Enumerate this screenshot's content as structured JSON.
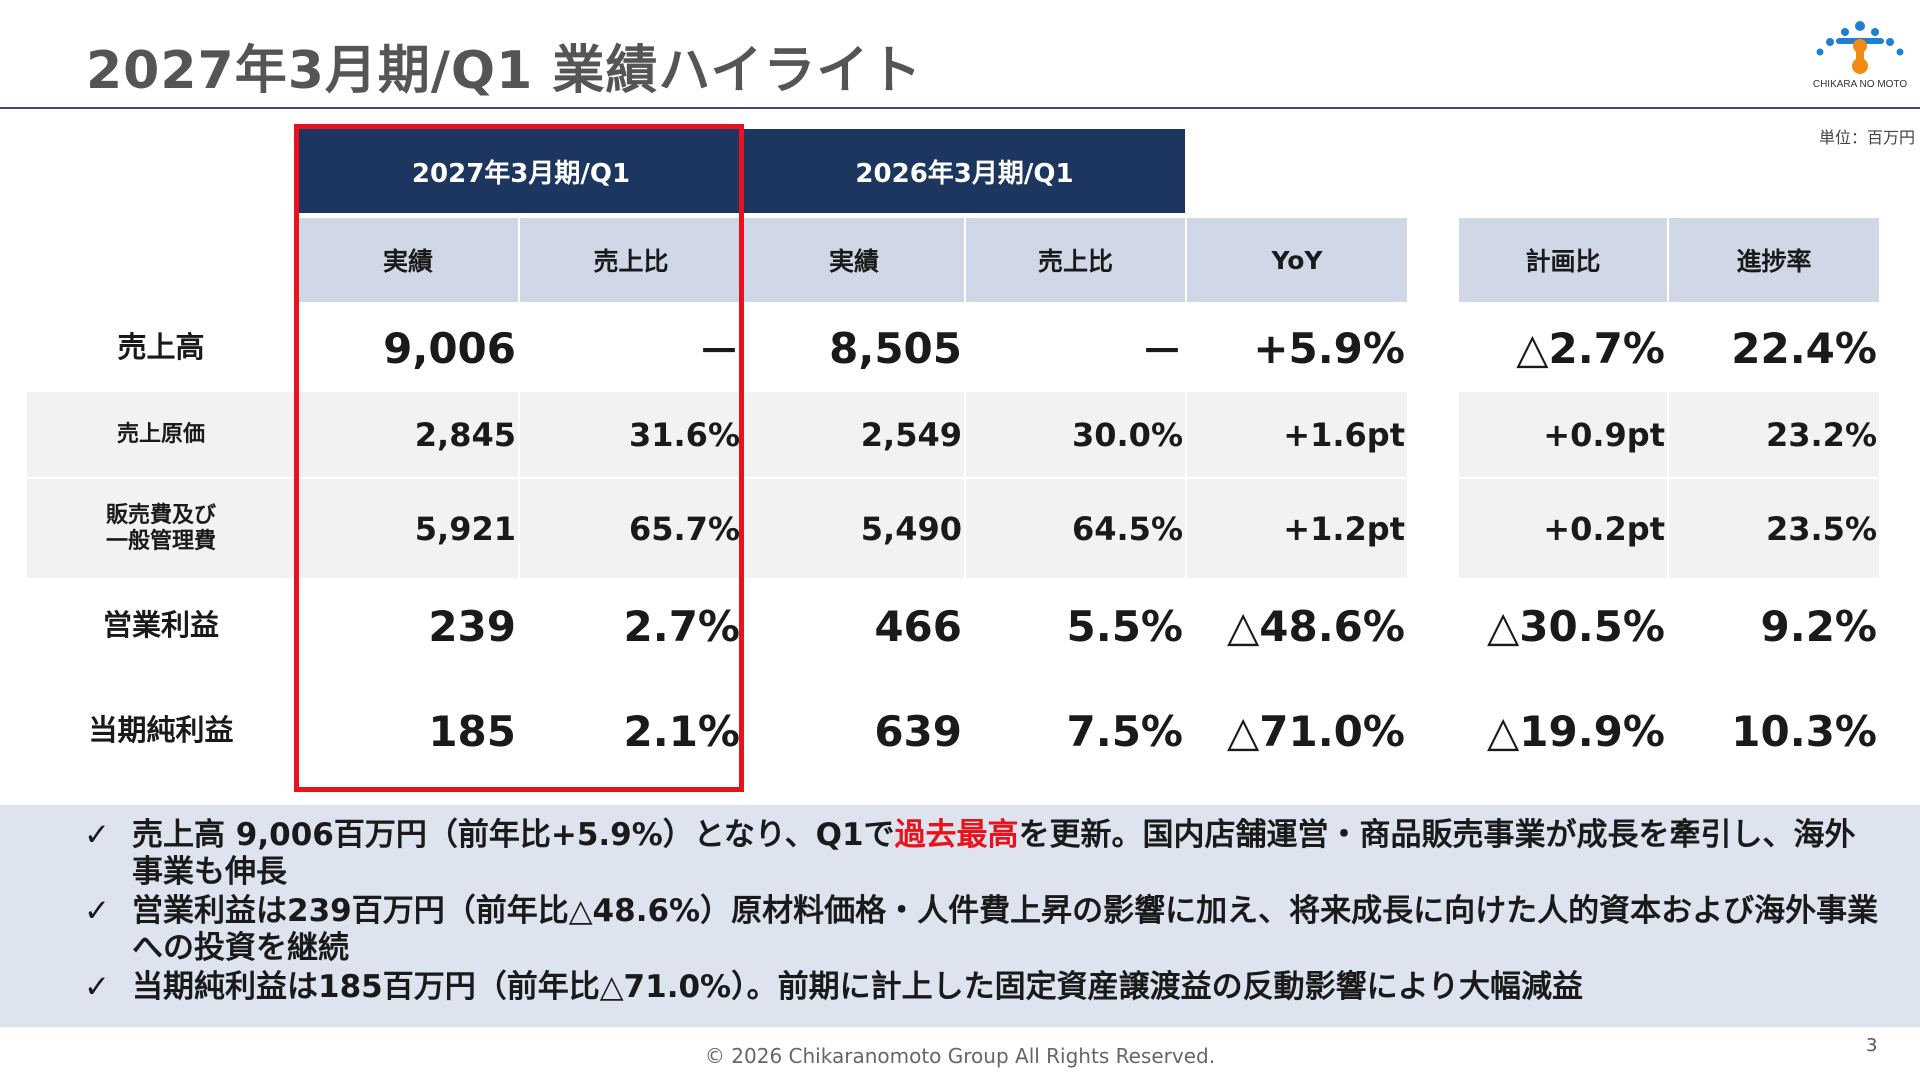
{
  "title": "2027年3月期/Q1 業績ハイライト",
  "logo_text": "CHIKARA NO MOTO",
  "unit": "単位：百万円",
  "periods": {
    "current": "2027年3月期/Q1",
    "prior": "2026年3月期/Q1"
  },
  "columns": {
    "cur_actual": "実績",
    "cur_ratio": "売上比",
    "pri_actual": "実績",
    "pri_ratio": "売上比",
    "yoy": "YoY",
    "plan": "計画比",
    "progress": "進捗率"
  },
  "rows": [
    {
      "label": "売上高",
      "cur_actual": "9,006",
      "cur_ratio": "－",
      "pri_actual": "8,505",
      "pri_ratio": "－",
      "yoy": "+5.9%",
      "plan": "△2.7%",
      "progress": "22.4%"
    },
    {
      "label": "売上原価",
      "cur_actual": "2,845",
      "cur_ratio": "31.6%",
      "pri_actual": "2,549",
      "pri_ratio": "30.0%",
      "yoy": "+1.6pt",
      "plan": "+0.9pt",
      "progress": "23.2%"
    },
    {
      "label_line1": "販売費及び",
      "label_line2": "一般管理費",
      "cur_actual": "5,921",
      "cur_ratio": "65.7%",
      "pri_actual": "5,490",
      "pri_ratio": "64.5%",
      "yoy": "+1.2pt",
      "plan": "+0.2pt",
      "progress": "23.5%"
    },
    {
      "label": "営業利益",
      "cur_actual": "239",
      "cur_ratio": "2.7%",
      "pri_actual": "466",
      "pri_ratio": "5.5%",
      "yoy": "△48.6%",
      "plan": "△30.5%",
      "progress": "9.2%"
    },
    {
      "label": "当期純利益",
      "cur_actual": "185",
      "cur_ratio": "2.1%",
      "pri_actual": "639",
      "pri_ratio": "7.5%",
      "yoy": "△71.0%",
      "plan": "△19.9%",
      "progress": "10.3%"
    }
  ],
  "summary": {
    "check": "✓",
    "b1_pre": "売上高 9,006百万円（前年比+5.9%）となり、Q1で",
    "b1_red": "過去最高",
    "b1_post": "を更新。国内店舗運営・商品販売事業が成長を牽引し、海外事業も伸長",
    "b2": "営業利益は239百万円（前年比△48.6%）原材料価格・人件費上昇の影響に加え、将来成長に向けた人的資本および海外事業への投資を継続",
    "b3": "当期純利益は185百万円（前年比△71.0%）。前期に計上した固定資産譲渡益の反動影響により大幅減益"
  },
  "footer": "© 2026 Chikaranomoto Group All Rights Reserved.",
  "page_number": "3",
  "colors": {
    "header_dark": "#1c3660",
    "header_light": "#d0d8e8",
    "highlight": "#e8131a",
    "summary_bg": "#dde4ef"
  }
}
